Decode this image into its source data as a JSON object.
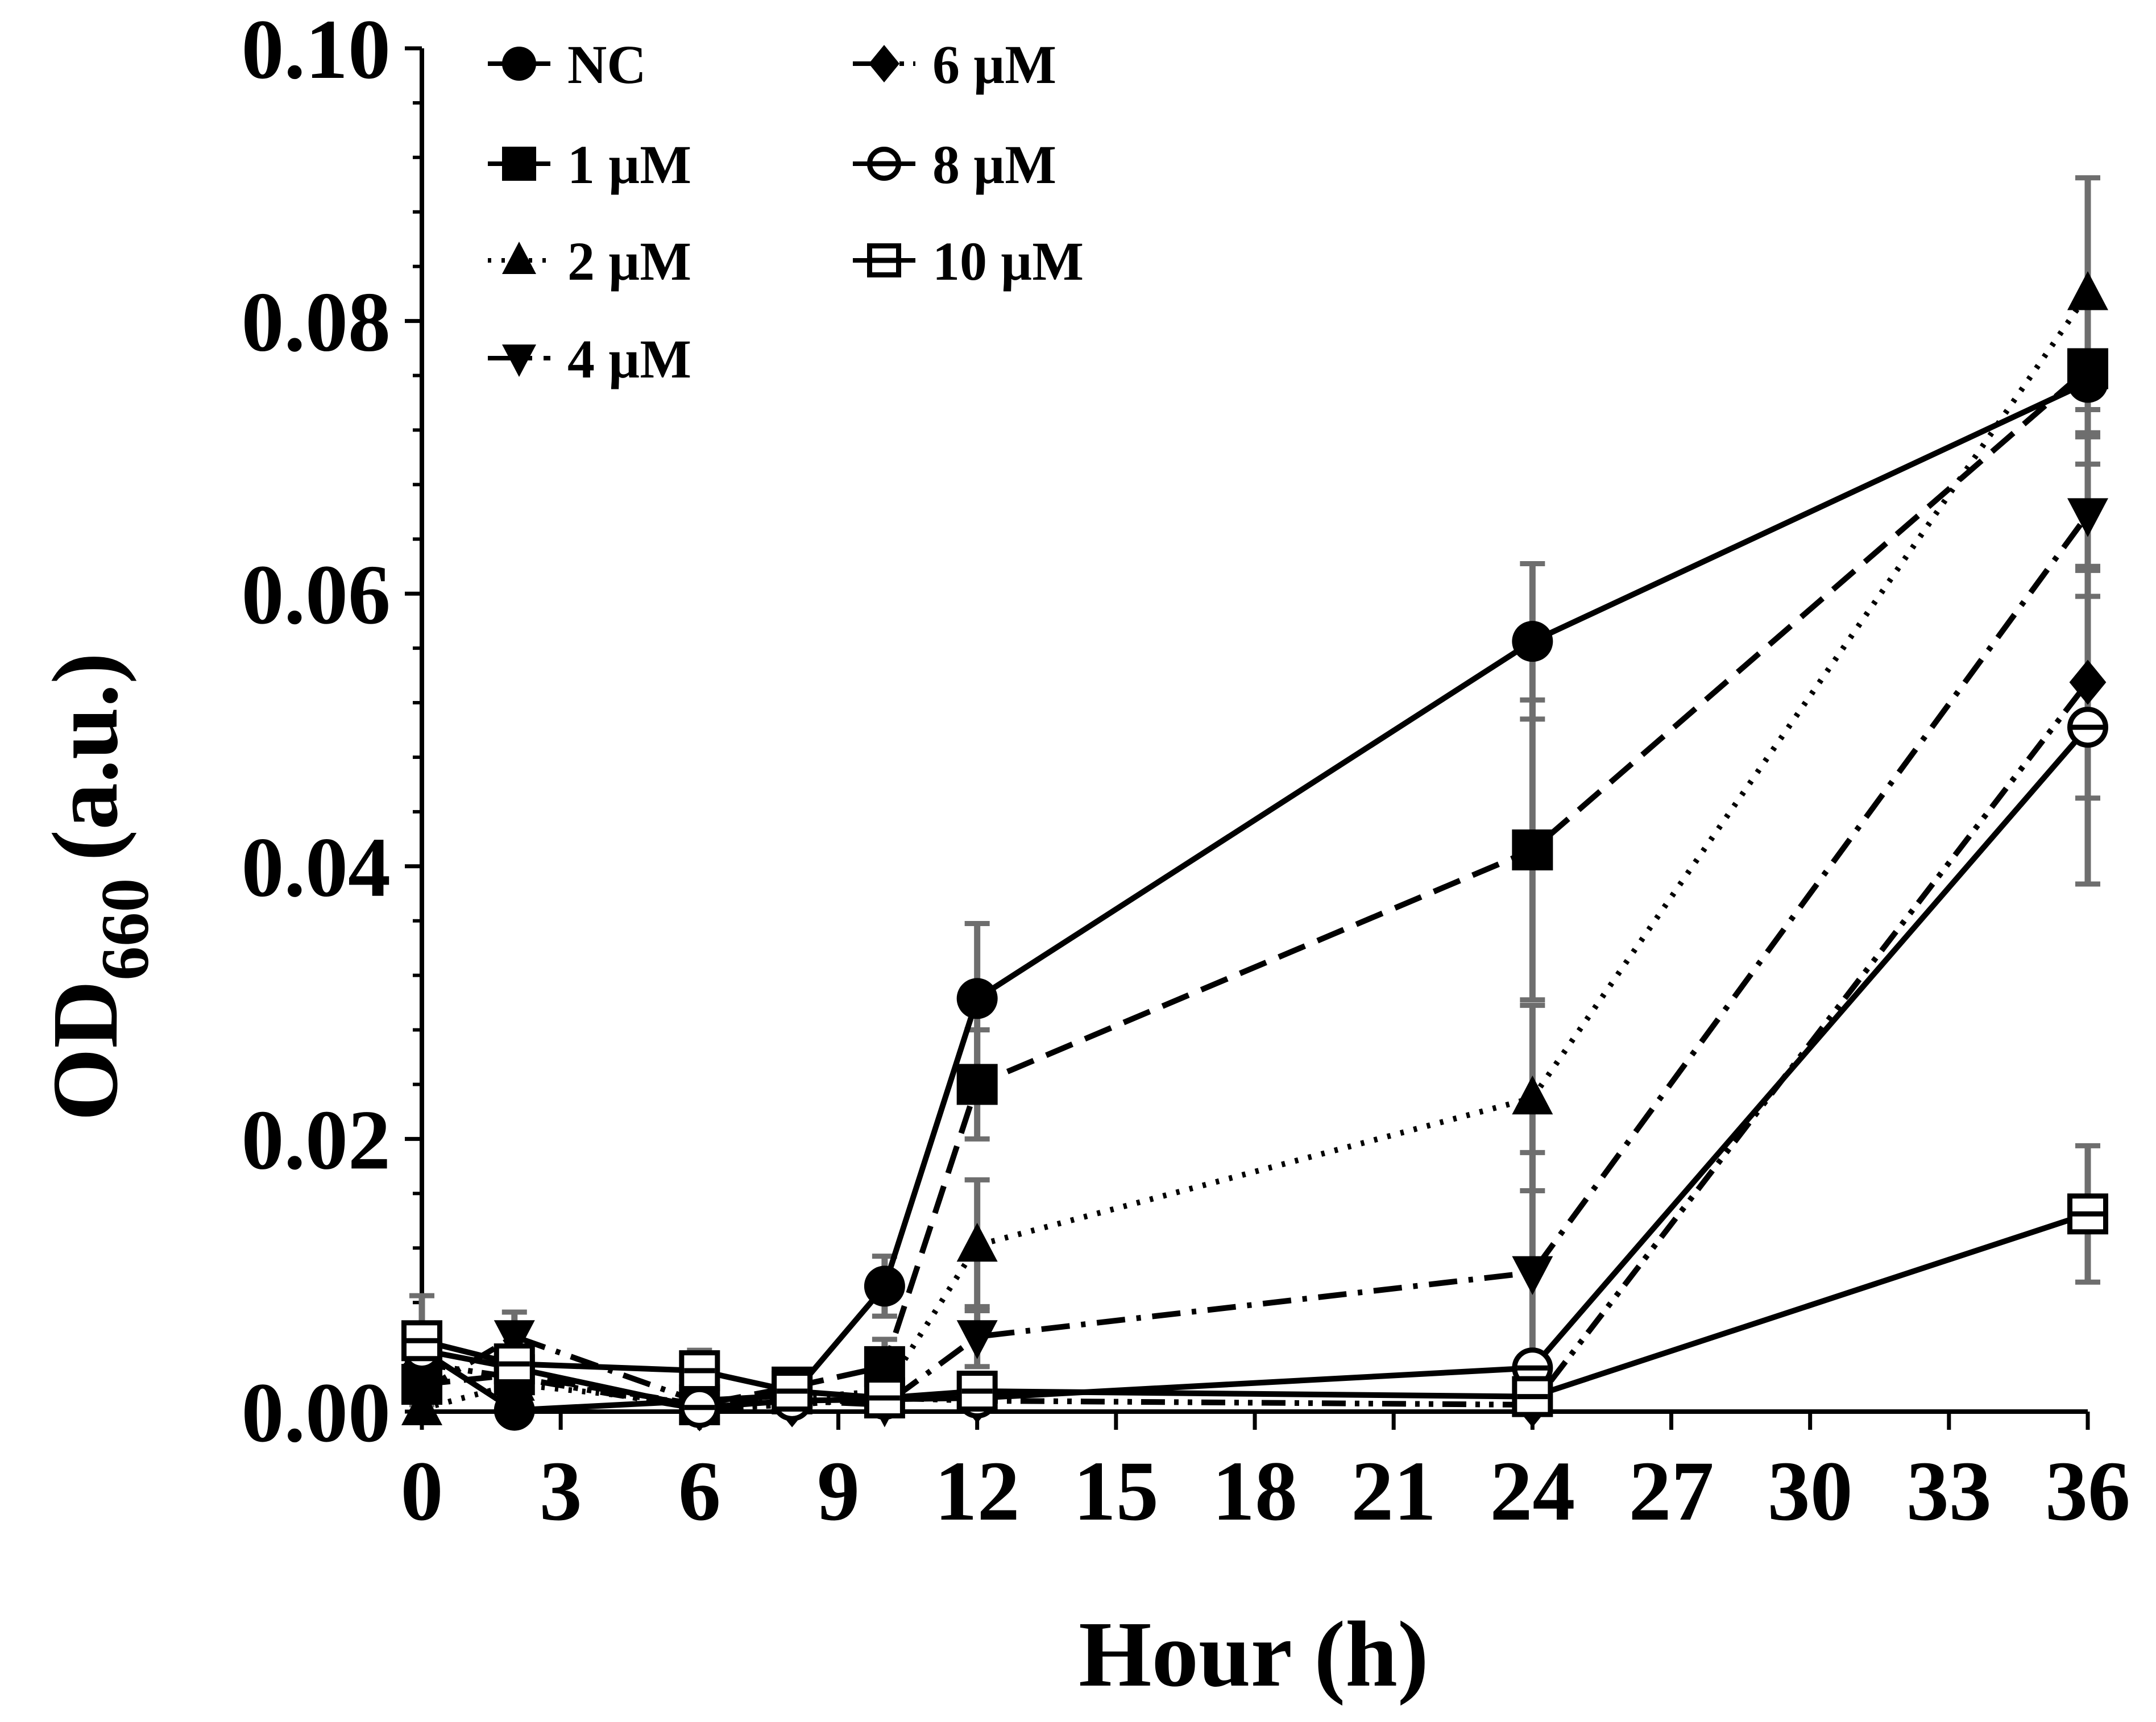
{
  "chart_data": {
    "type": "line",
    "title": "",
    "xlabel": "Hour (h)",
    "ylabel_main": "OD",
    "ylabel_sub": "660",
    "ylabel_unit": "(a.u.)",
    "xlim": [
      0,
      36
    ],
    "ylim": [
      0,
      0.1
    ],
    "xticks": [
      0,
      3,
      6,
      9,
      12,
      15,
      18,
      21,
      24,
      27,
      30,
      33,
      36
    ],
    "yticks": [
      0.0,
      0.02,
      0.04,
      0.06,
      0.08,
      0.1
    ],
    "ytick_labels": [
      "0.00",
      "0.02",
      "0.04",
      "0.06",
      "0.08",
      "0.10"
    ],
    "legend_position": "top-left",
    "x": [
      0,
      2,
      6,
      8,
      10,
      12,
      24,
      36
    ],
    "series": [
      {
        "name": "NC",
        "marker": "circle-filled",
        "dash": "solid",
        "values": [
          0.0045,
          0.0001,
          0.0008,
          0.0012,
          0.0092,
          0.0303,
          0.0565,
          0.0755
        ],
        "errors": [
          0.004,
          0.0005,
          0.0005,
          0.001,
          0.0022,
          0.0055,
          0.0057,
          0.006
        ]
      },
      {
        "name": "1 µM",
        "marker": "square-filled",
        "dash": "long-dash",
        "values": [
          0.002,
          0.0027,
          0.0005,
          0.0018,
          0.0033,
          0.024,
          0.0412,
          0.0765
        ],
        "errors": [
          0.002,
          0.001,
          0.0005,
          0.001,
          0.002,
          0.004,
          0.011,
          0.005
        ]
      },
      {
        "name": "2 µM",
        "marker": "triangle-up-filled",
        "dash": "dotted",
        "values": [
          0.0002,
          0.002,
          0.0006,
          0.001,
          0.0015,
          0.0122,
          0.023,
          0.082
        ],
        "errors": [
          0.0008,
          0.0008,
          0.0005,
          0.0005,
          0.0012,
          0.0048,
          0.0068,
          0.0085
        ]
      },
      {
        "name": "4 µM",
        "marker": "triangle-down-filled",
        "dash": "dash-dot",
        "values": [
          0.0015,
          0.0055,
          0.0007,
          0.0008,
          0.0005,
          0.0055,
          0.0102,
          0.0658
        ],
        "errors": [
          0.001,
          0.0018,
          0.0005,
          0.0005,
          0.001,
          0.0022,
          0.0088,
          0.006
        ]
      },
      {
        "name": "6 µM",
        "marker": "diamond-filled",
        "dash": "dash-dot-dot",
        "values": [
          0.0035,
          0.0025,
          0.0002,
          0.0005,
          0.001,
          0.0008,
          0.0005,
          0.0535
        ],
        "errors": [
          0.0008,
          0.001,
          0.0005,
          0.0005,
          0.001,
          0.0005,
          0.0005,
          0.0085
        ]
      },
      {
        "name": "8 µM",
        "marker": "circle-bar",
        "dash": "solid",
        "values": [
          0.0045,
          0.0032,
          0.0003,
          0.0008,
          0.0009,
          0.001,
          0.0032,
          0.0502
        ],
        "errors": [
          0.0008,
          0.001,
          0.0005,
          0.0005,
          0.001,
          0.0005,
          0.0005,
          0.0115
        ]
      },
      {
        "name": "10 µM",
        "marker": "square-bar",
        "dash": "solid",
        "values": [
          0.0052,
          0.0035,
          0.003,
          0.0015,
          0.001,
          0.0015,
          0.0011,
          0.0145
        ],
        "errors": [
          0.0008,
          0.001,
          0.0015,
          0.0005,
          0.0005,
          0.0005,
          0.0005,
          0.005
        ]
      }
    ]
  }
}
